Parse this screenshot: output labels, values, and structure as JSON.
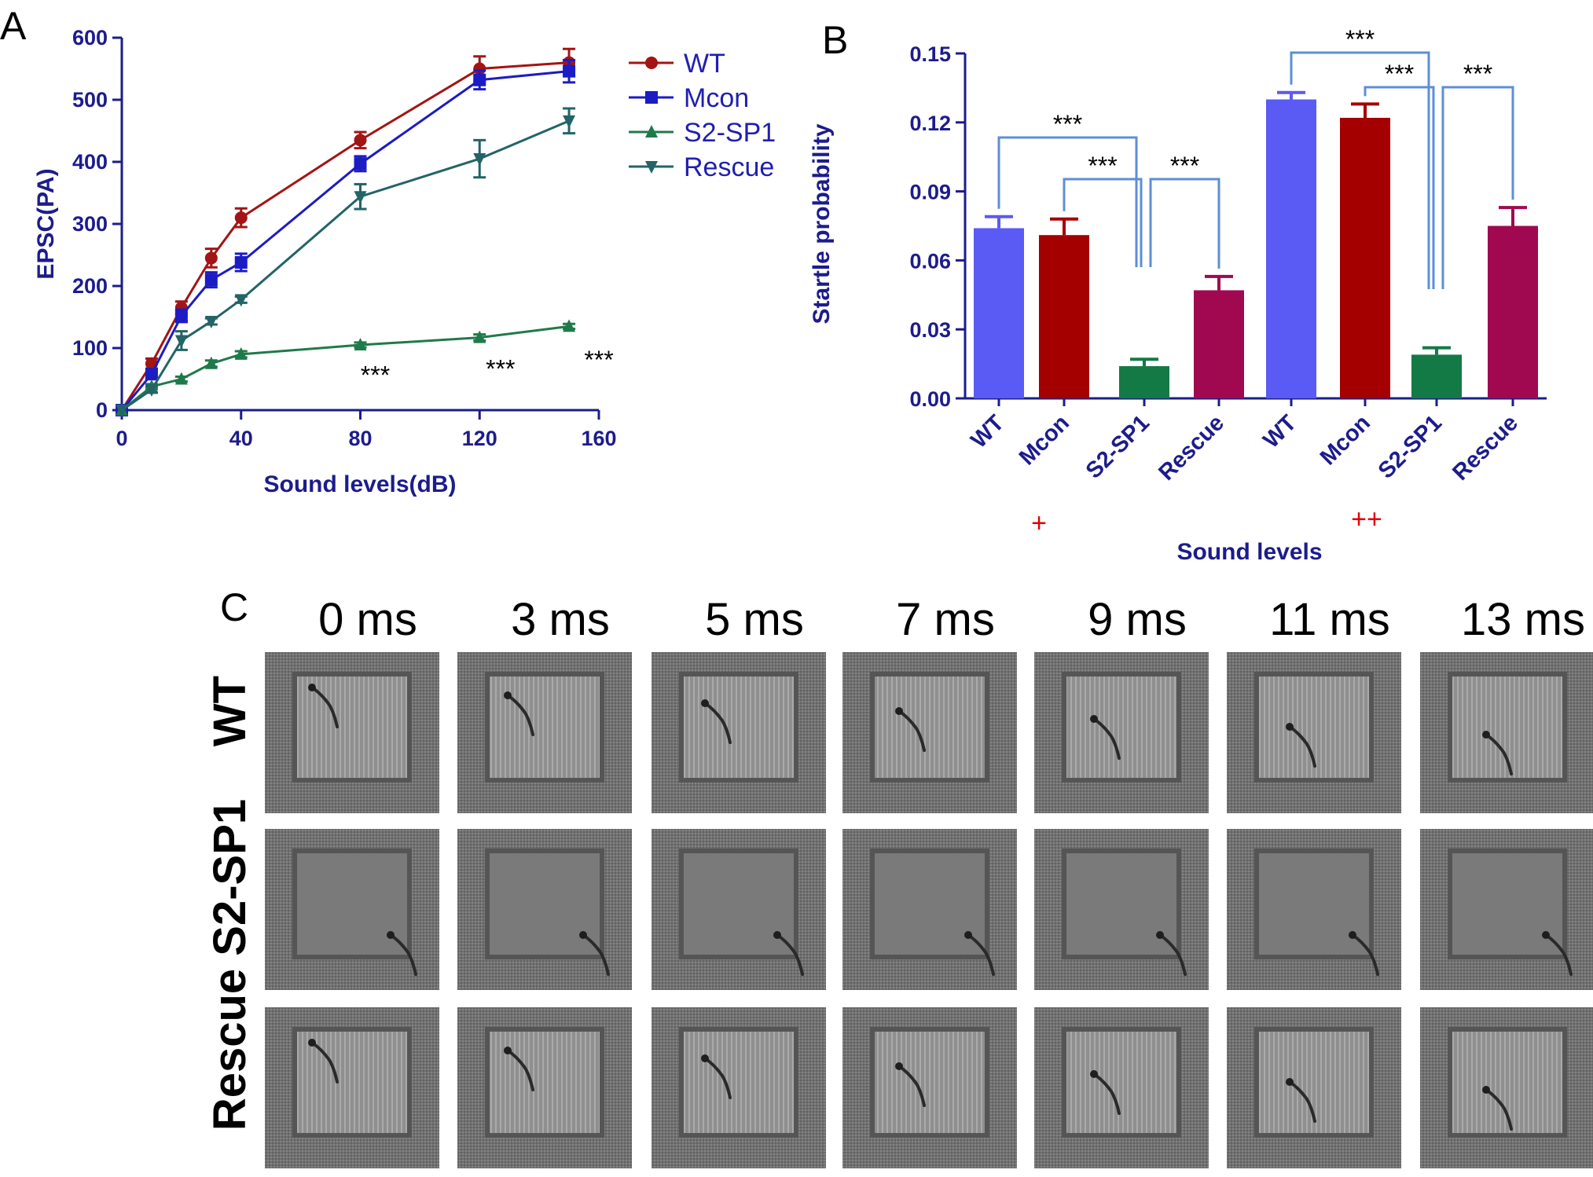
{
  "panel_labels": [
    "A",
    "B",
    "C"
  ],
  "colors": {
    "axis": "#1c1c8c",
    "WT": "#a31414",
    "Mcon": "#1c1cc4",
    "S2-SP1": "#1f7a4a",
    "Rescue": "#236466",
    "bar_wt": "#5a5af5",
    "bar_mcon": "#a50000",
    "bar_s2": "#137a46",
    "bar_rescue": "#a0094f",
    "bracket": "#5c8fd6",
    "plus": "#e00000"
  },
  "chart_data": [
    {
      "type": "line",
      "panel": "A",
      "xlabel": "Sound levels(dB)",
      "ylabel": "EPSC(PA)",
      "xlim": [
        0,
        160
      ],
      "ylim": [
        0,
        600
      ],
      "xticks": [
        "0",
        "40",
        "80",
        "120",
        "160"
      ],
      "yticks": [
        "0",
        "100",
        "200",
        "300",
        "400",
        "500",
        "600"
      ],
      "legend_position": "top-right",
      "x": [
        0,
        10,
        20,
        30,
        40,
        80,
        120,
        150
      ],
      "series": [
        {
          "name": "WT",
          "marker": "circle",
          "values": [
            0,
            75,
            165,
            245,
            310,
            435,
            550,
            560
          ],
          "errors": [
            0,
            8,
            10,
            15,
            15,
            13,
            20,
            22
          ]
        },
        {
          "name": "Mcon",
          "marker": "square",
          "values": [
            0,
            58,
            152,
            210,
            238,
            397,
            532,
            546
          ],
          "errors": [
            0,
            8,
            10,
            12,
            14,
            12,
            15,
            18
          ]
        },
        {
          "name": "S2-SP1",
          "marker": "triangle-up",
          "values": [
            0,
            38,
            50,
            75,
            90,
            105,
            117,
            135
          ],
          "errors": [
            0,
            4,
            4,
            5,
            5,
            4,
            5,
            4
          ]
        },
        {
          "name": "Rescue",
          "marker": "triangle-down",
          "values": [
            0,
            33,
            112,
            143,
            178,
            344,
            405,
            466
          ],
          "errors": [
            0,
            5,
            15,
            5,
            5,
            20,
            30,
            20
          ]
        }
      ],
      "annotations": [
        {
          "text": "***",
          "x": 85,
          "y": 55
        },
        {
          "text": "***",
          "x": 127,
          "y": 65
        },
        {
          "text": "***",
          "x": 160,
          "y": 80
        }
      ]
    },
    {
      "type": "bar",
      "panel": "B",
      "ylabel": "Startle probability",
      "xlabel": "Sound levels",
      "ylim": [
        0,
        0.15
      ],
      "yticks": [
        "0.00",
        "0.03",
        "0.06",
        "0.09",
        "0.12",
        "0.15"
      ],
      "categories": [
        "WT",
        "Mcon",
        "S2-SP1",
        "Rescue",
        "WT",
        "Mcon",
        "S2-SP1",
        "Rescue"
      ],
      "values": [
        0.074,
        0.071,
        0.014,
        0.047,
        0.13,
        0.122,
        0.019,
        0.075
      ],
      "errors": [
        0.005,
        0.007,
        0.003,
        0.006,
        0.003,
        0.006,
        0.003,
        0.008
      ],
      "bar_colors": [
        "bar_wt",
        "bar_mcon",
        "bar_s2",
        "bar_rescue",
        "bar_wt",
        "bar_mcon",
        "bar_s2",
        "bar_rescue"
      ],
      "group_markers": [
        "+",
        "++"
      ],
      "significance": [
        {
          "text": "***",
          "from": 0,
          "to": 2
        },
        {
          "text": "***",
          "from": 1,
          "to": 2
        },
        {
          "text": "***",
          "from": 2,
          "to": 3
        },
        {
          "text": "***",
          "from": 4,
          "to": 6
        },
        {
          "text": "***",
          "from": 5,
          "to": 6
        },
        {
          "text": "***",
          "from": 6,
          "to": 7
        }
      ]
    }
  ],
  "panel_c": {
    "time_labels": [
      "0 ms",
      "3 ms",
      "5 ms",
      "7 ms",
      "9 ms",
      "11 ms",
      "13 ms"
    ],
    "row_labels": [
      "WT",
      "Rescue S2-SP1"
    ]
  }
}
